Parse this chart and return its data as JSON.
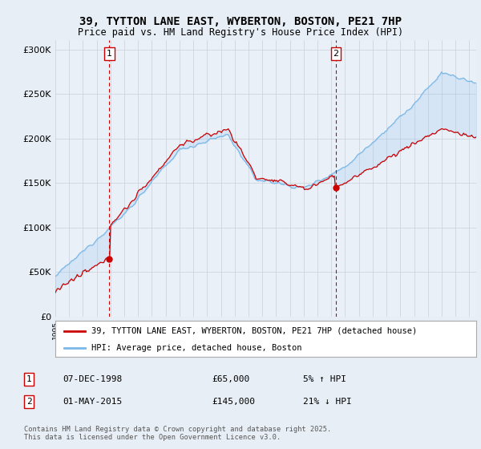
{
  "title": "39, TYTTON LANE EAST, WYBERTON, BOSTON, PE21 7HP",
  "subtitle": "Price paid vs. HM Land Registry's House Price Index (HPI)",
  "legend_line1": "39, TYTTON LANE EAST, WYBERTON, BOSTON, PE21 7HP (detached house)",
  "legend_line2": "HPI: Average price, detached house, Boston",
  "annotation1_date": "07-DEC-1998",
  "annotation1_price": "£65,000",
  "annotation1_hpi": "5% ↑ HPI",
  "annotation2_date": "01-MAY-2015",
  "annotation2_price": "£145,000",
  "annotation2_hpi": "21% ↓ HPI",
  "footer": "Contains HM Land Registry data © Crown copyright and database right 2025.\nThis data is licensed under the Open Government Licence v3.0.",
  "hpi_color": "#7ab8e8",
  "price_color": "#cc0000",
  "dashed_color": "#cc0000",
  "background_color": "#e8eef5",
  "plot_bg_color": "#eaf0f8",
  "ylim": [
    0,
    310000
  ],
  "yticks": [
    0,
    50000,
    100000,
    150000,
    200000,
    250000,
    300000
  ],
  "ytick_labels": [
    "£0",
    "£50K",
    "£100K",
    "£150K",
    "£200K",
    "£250K",
    "£300K"
  ],
  "sale1_x": 1998.92,
  "sale1_y": 65000,
  "sale2_x": 2015.33,
  "sale2_y": 145000,
  "xmin": 1995.0,
  "xmax": 2025.5
}
